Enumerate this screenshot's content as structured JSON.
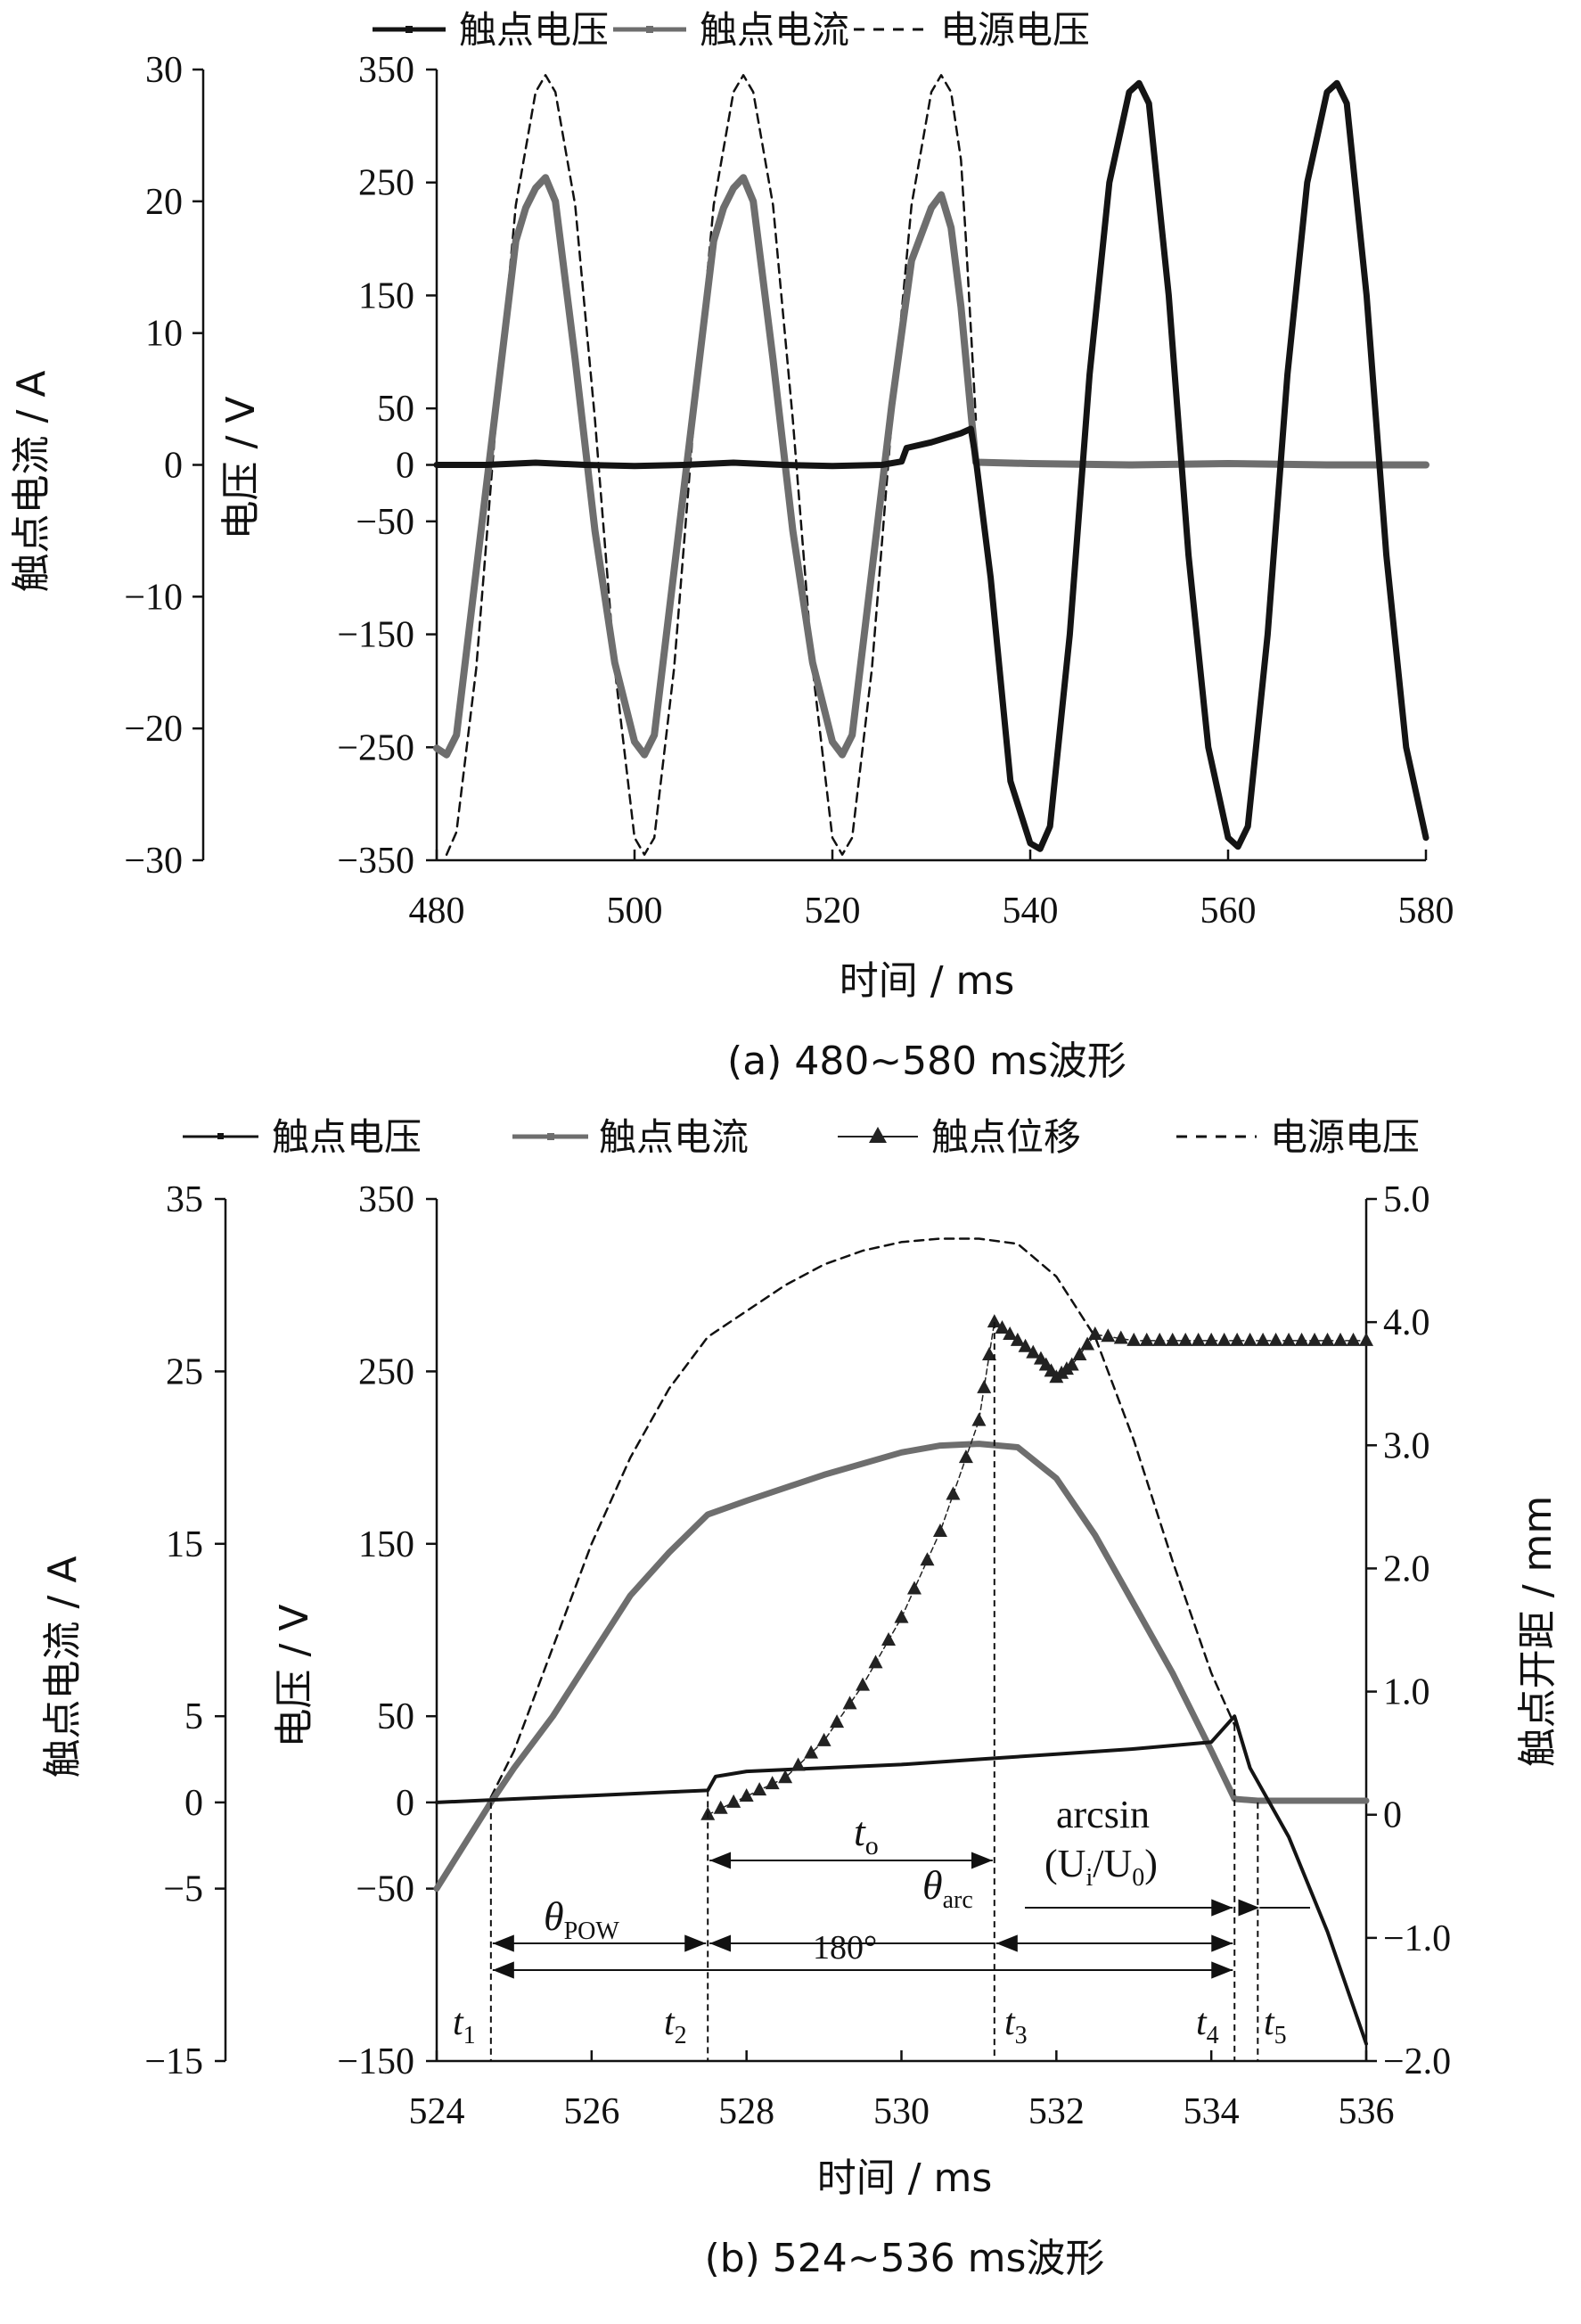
{
  "legend_a": {
    "contact_voltage": "触点电压",
    "contact_current": "触点电流",
    "source_voltage": "电源电压"
  },
  "legend_b": {
    "contact_voltage": "触点电压",
    "contact_current": "触点电流",
    "contact_displacement": "触点位移",
    "source_voltage": "电源电压"
  },
  "colors": {
    "contact_voltage": "#141414",
    "contact_current": "#6e6e6e",
    "contact_displacement": "#222222",
    "source_voltage": "#111111"
  },
  "chart_data": [
    {
      "type": "line",
      "caption": "(a)  480~580 ms波形",
      "xlabel": "时间 / ms",
      "ylabel_left": "触点电流 / A",
      "ylabel_right_inner": "电压 / V",
      "xlim": [
        480,
        580
      ],
      "xticks": [
        480,
        500,
        520,
        540,
        560,
        580
      ],
      "ylim_current": [
        -30,
        30
      ],
      "yticks_current": [
        -30,
        -20,
        -10,
        0,
        10,
        20,
        30
      ],
      "ylim_voltage": [
        -350,
        350
      ],
      "ytick_labels_voltage": [
        "350",
        "250",
        "150",
        "50",
        "0",
        "−50",
        "−150",
        "−250",
        "−350"
      ],
      "series": [
        {
          "name": "电源电压",
          "axis": "voltage",
          "style": "dashed",
          "x": [
            481,
            482,
            484,
            486,
            488,
            490,
            491,
            492,
            494,
            496,
            498,
            500,
            501,
            502,
            504,
            506,
            508,
            510,
            511,
            512,
            514,
            516,
            518,
            520,
            521,
            522,
            524,
            526,
            528,
            530,
            531,
            532,
            533,
            533.5,
            534,
            534.5
          ],
          "y": [
            -345,
            -325,
            -180,
            40,
            230,
            330,
            345,
            330,
            230,
            40,
            -180,
            -330,
            -345,
            -330,
            -180,
            40,
            230,
            330,
            345,
            330,
            230,
            40,
            -180,
            -330,
            -345,
            -330,
            -180,
            40,
            230,
            330,
            345,
            330,
            270,
            200,
            120,
            40
          ]
        },
        {
          "name": "触点电流",
          "axis": "current",
          "style": "thick",
          "x": [
            480,
            481,
            482,
            484,
            486,
            488,
            489,
            490,
            491,
            492,
            494,
            496,
            498,
            500,
            501,
            502,
            504,
            506,
            508,
            509,
            510,
            511,
            512,
            514,
            516,
            518,
            520,
            521,
            522,
            524,
            526,
            528,
            529,
            530,
            531,
            532,
            533,
            534,
            534.5,
            540,
            550,
            560,
            570,
            580
          ],
          "y": [
            -21.5,
            -22,
            -20.5,
            -8,
            4.5,
            17,
            19.5,
            21,
            21.8,
            20,
            8,
            -5,
            -15,
            -21,
            -22,
            -20.5,
            -8,
            4.5,
            17,
            19.5,
            21,
            21.8,
            20,
            8,
            -5,
            -15,
            -21,
            -22,
            -20.5,
            -8,
            4.5,
            15.5,
            17.5,
            19.5,
            20.5,
            18,
            12,
            4,
            0.2,
            0.1,
            0,
            0.1,
            0,
            0
          ]
        },
        {
          "name": "触点电压",
          "axis": "voltage",
          "style": "thick",
          "x": [
            480,
            485,
            490,
            495,
            500,
            505,
            510,
            515,
            520,
            525,
            527,
            527.5,
            530,
            533,
            534,
            534.5,
            536,
            538,
            540,
            541,
            542,
            544,
            546,
            548,
            550,
            551,
            552,
            554,
            556,
            558,
            560,
            561,
            562,
            564,
            566,
            568,
            570,
            571,
            572,
            574,
            576,
            578,
            580
          ],
          "y": [
            0,
            0,
            2,
            0,
            -1,
            0,
            2,
            0,
            -1,
            0,
            3,
            15,
            20,
            28,
            32,
            5,
            -100,
            -280,
            -335,
            -340,
            -320,
            -150,
            80,
            250,
            330,
            338,
            320,
            150,
            -80,
            -250,
            -330,
            -338,
            -320,
            -150,
            80,
            250,
            330,
            338,
            320,
            150,
            -80,
            -250,
            -330
          ]
        }
      ]
    },
    {
      "type": "line",
      "caption": "(b)  524~536 ms波形",
      "xlabel": "时间 / ms",
      "ylabel_left": "触点电流 / A",
      "ylabel_right_inner": "电压 / V",
      "ylabel_right": "触点开距 / mm",
      "xlim": [
        524,
        536
      ],
      "xticks": [
        524,
        526,
        528,
        530,
        532,
        534,
        536
      ],
      "ylim_current": [
        -15,
        35
      ],
      "yticks_current": [
        -15,
        -5,
        0,
        5,
        15,
        25,
        35
      ],
      "ylim_voltage": [
        -150,
        350
      ],
      "ytick_labels_voltage": [
        "350",
        "250",
        "150",
        "50",
        "0",
        "−50",
        "−150"
      ],
      "ylim_displacement": [
        -2.0,
        5.0
      ],
      "yticks_displacement": [
        "5.0",
        "4.0",
        "3.0",
        "2.0",
        "1.0",
        "0",
        "−1.0",
        "−2.0"
      ],
      "series": [
        {
          "name": "电源电压",
          "axis": "voltage",
          "style": "dashed",
          "x": [
            524,
            524.5,
            525,
            525.5,
            526,
            526.5,
            527,
            527.5,
            528,
            528.5,
            529,
            529.5,
            530,
            530.5,
            531,
            531.5,
            532,
            532.5,
            533,
            533.5,
            534,
            534.3
          ],
          "y": [
            -50,
            -15,
            30,
            90,
            150,
            200,
            240,
            270,
            285,
            300,
            312,
            320,
            325,
            327,
            327,
            324,
            305,
            270,
            210,
            140,
            75,
            45
          ]
        },
        {
          "name": "触点电流",
          "axis": "current",
          "style": "thick",
          "x": [
            524,
            524.7,
            525,
            525.5,
            526,
            526.5,
            527,
            527.5,
            528,
            529,
            530,
            530.5,
            531,
            531.5,
            532,
            532.5,
            533,
            533.5,
            534,
            534.3,
            534.6,
            535,
            536
          ],
          "y": [
            -5.0,
            0.0,
            2.0,
            5.0,
            8.5,
            12.0,
            14.5,
            16.7,
            17.5,
            19.0,
            20.3,
            20.7,
            20.8,
            20.6,
            18.8,
            15.5,
            11.5,
            7.5,
            3.0,
            0.2,
            0.1,
            0.1,
            0.1
          ]
        },
        {
          "name": "触点电压",
          "axis": "voltage",
          "style": "thin",
          "x": [
            524,
            525,
            526,
            527,
            527.5,
            527.6,
            528,
            529,
            530,
            531,
            532,
            533,
            534,
            534.3,
            534.5,
            535,
            535.5,
            536
          ],
          "y": [
            0,
            2,
            4,
            6,
            7,
            15,
            18,
            20,
            22,
            25,
            28,
            31,
            35,
            50,
            20,
            -20,
            -75,
            -140
          ]
        },
        {
          "name": "触点位移",
          "axis": "displacement",
          "style": "triangles",
          "x": [
            527.5,
            528,
            528.5,
            529,
            529.5,
            530,
            530.5,
            531,
            531.2,
            531.5,
            531.8,
            532,
            532.2,
            532.5,
            533,
            533.5,
            534,
            534.5,
            535,
            535.5,
            536
          ],
          "y": [
            0.0,
            0.15,
            0.3,
            0.6,
            1.05,
            1.6,
            2.3,
            3.2,
            4.0,
            3.85,
            3.7,
            3.55,
            3.65,
            3.9,
            3.85,
            3.85,
            3.85,
            3.85,
            3.85,
            3.85,
            3.85
          ]
        }
      ],
      "annotations": {
        "t1": "t",
        "t1_sub": "1",
        "t1_x": 524.7,
        "t2": "t",
        "t2_sub": "2",
        "t2_x": 527.5,
        "t3": "t",
        "t3_sub": "3",
        "t3_x": 531.2,
        "t4": "t",
        "t4_sub": "4",
        "t4_x": 534.3,
        "t5": "t",
        "t5_sub": "5",
        "t5_x": 534.6,
        "to": "t",
        "to_sub": "o",
        "theta_pow": "θ",
        "theta_pow_sub": "POW",
        "theta_arc": "θ",
        "theta_arc_sub": "arc",
        "deg180": "180°",
        "arcsin_line1": "arcsin",
        "arcsin_line2": "(U",
        "arcsin_i": "i",
        "arcsin_mid": "/U",
        "arcsin_0": "0",
        "arcsin_end": ")"
      }
    }
  ]
}
